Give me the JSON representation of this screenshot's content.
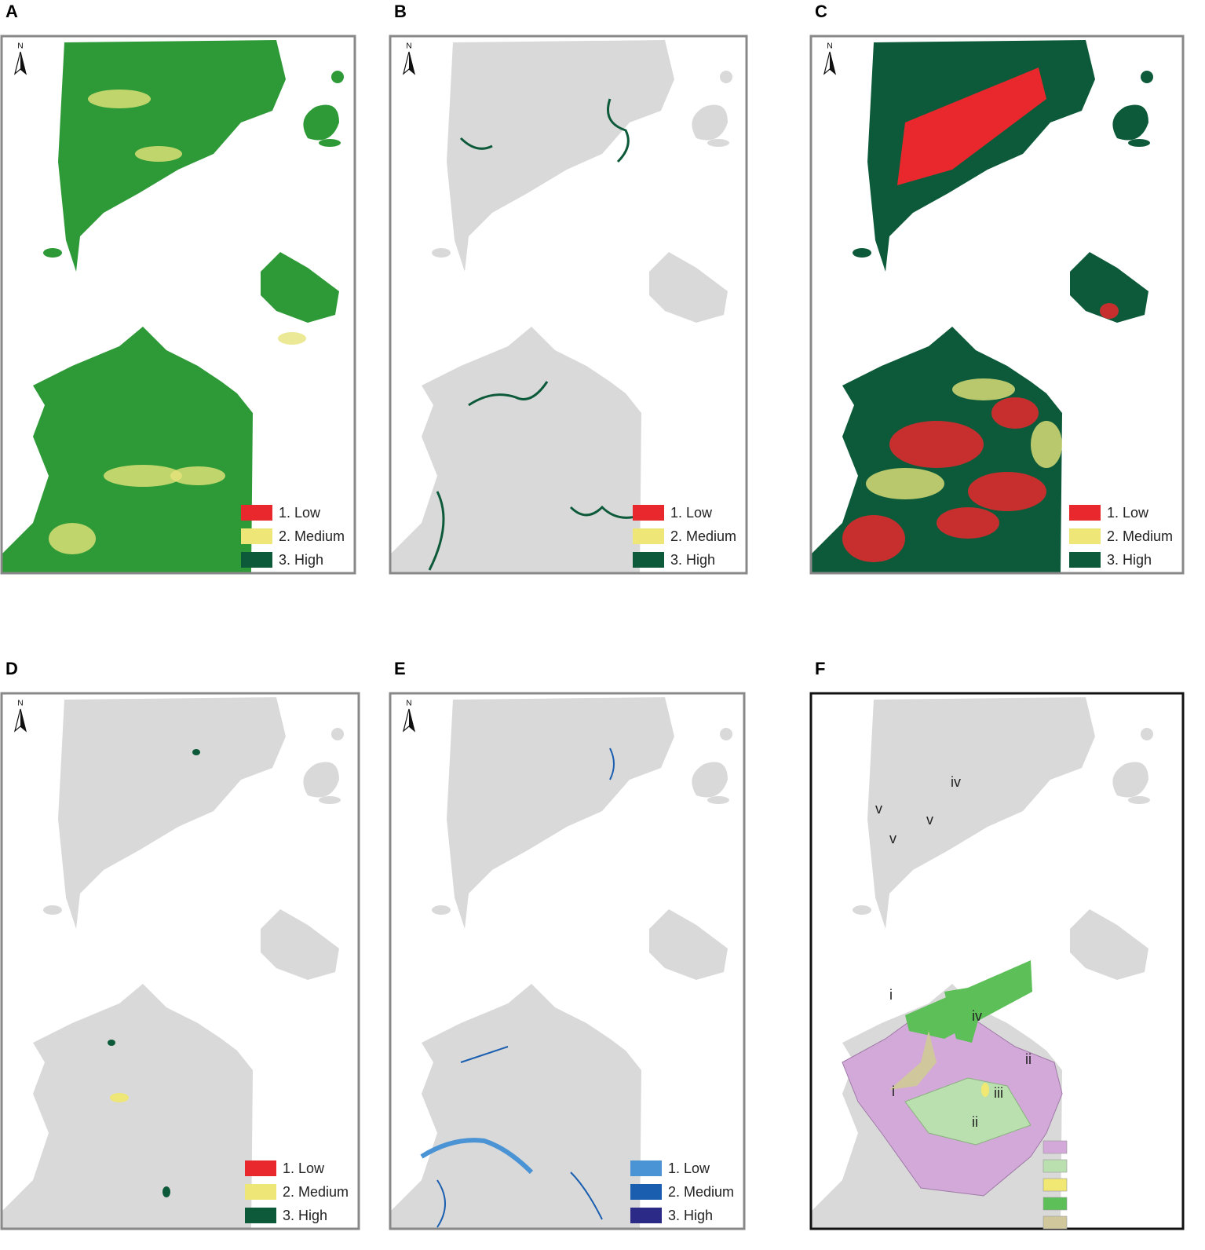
{
  "panels": [
    {
      "label": "A",
      "north": "N",
      "legend": [
        {
          "label": "1. Low",
          "color": "#e8282d"
        },
        {
          "label": "2. Medium",
          "color": "#eee676"
        },
        {
          "label": "3. High",
          "color": "#0d5a3a"
        }
      ]
    },
    {
      "label": "B",
      "north": "N",
      "legend": [
        {
          "label": "1. Low",
          "color": "#e8282d"
        },
        {
          "label": "2. Medium",
          "color": "#eee676"
        },
        {
          "label": "3. High",
          "color": "#0d5a3a"
        }
      ]
    },
    {
      "label": "C",
      "north": "N",
      "legend": [
        {
          "label": "1. Low",
          "color": "#e8282d"
        },
        {
          "label": "2. Medium",
          "color": "#eee676"
        },
        {
          "label": "3. High",
          "color": "#0d5a3a"
        }
      ]
    },
    {
      "label": "D",
      "north": "N",
      "legend": [
        {
          "label": "1. Low",
          "color": "#e8282d"
        },
        {
          "label": "2. Medium",
          "color": "#eee676"
        },
        {
          "label": "3. High",
          "color": "#0d5a3a"
        }
      ]
    },
    {
      "label": "E",
      "north": "N",
      "legend": [
        {
          "label": "1. Low",
          "color": "#4a93d4"
        },
        {
          "label": "2. Medium",
          "color": "#1a5eb0"
        },
        {
          "label": "3. High",
          "color": "#2b2a86"
        }
      ]
    },
    {
      "label": "F",
      "legend": [
        {
          "color": "#d2a9d8"
        },
        {
          "color": "#b9e0ae"
        },
        {
          "color": "#f1e873"
        },
        {
          "color": "#5cbf57"
        },
        {
          "color": "#d0c89c"
        }
      ],
      "zones": [
        "iv",
        "v",
        "v",
        "v",
        "i",
        "iv",
        "ii",
        "i",
        "iii",
        "ii"
      ]
    }
  ]
}
